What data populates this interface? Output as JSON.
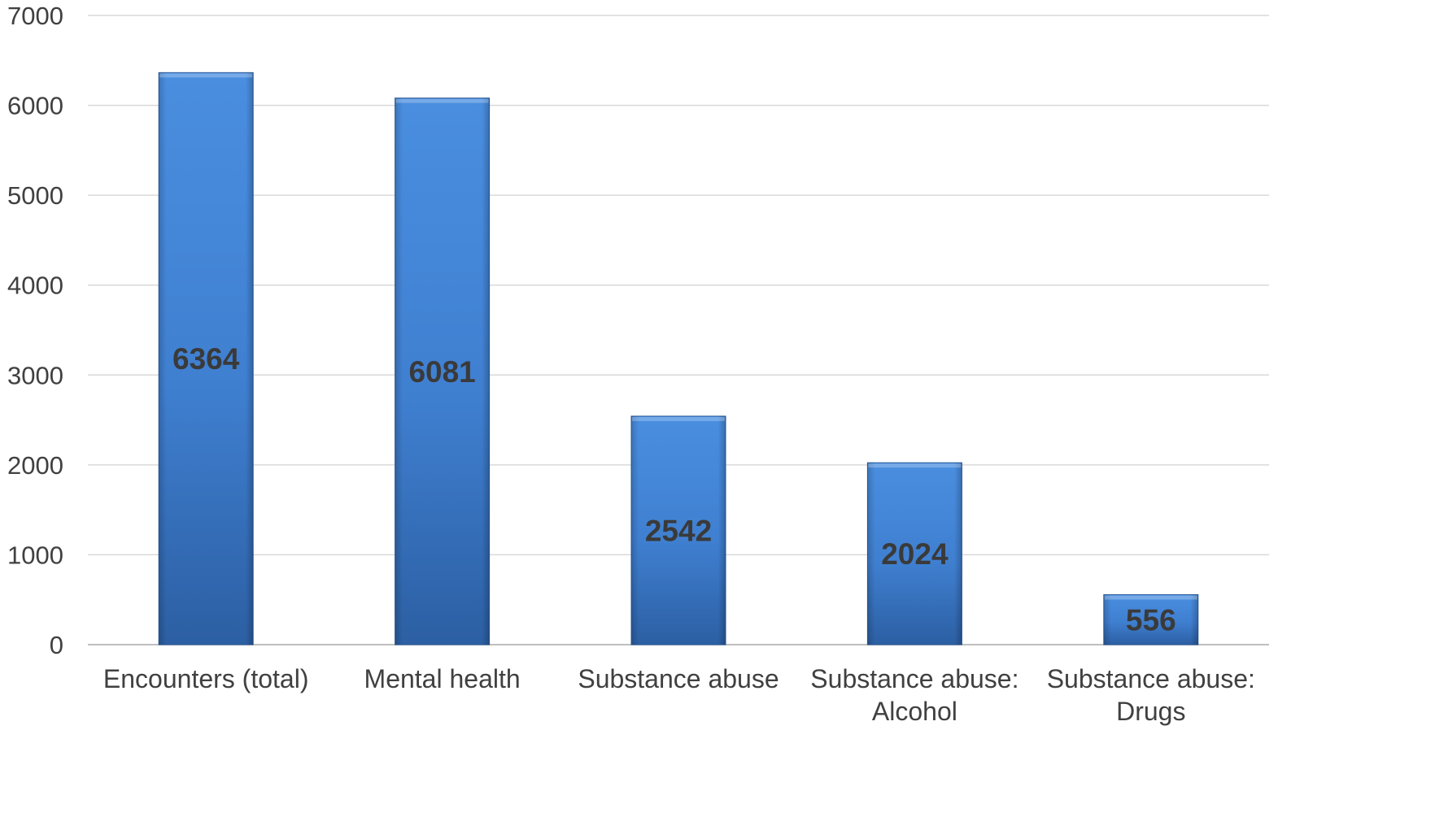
{
  "chart_data": {
    "type": "bar",
    "title": "",
    "xlabel": "",
    "ylabel": "",
    "categories": [
      [
        "Encounters (total)"
      ],
      [
        "Mental health"
      ],
      [
        "Substance abuse"
      ],
      [
        "Substance abuse:",
        "Alcohol"
      ],
      [
        "Substance abuse:",
        "Drugs"
      ]
    ],
    "values": [
      6364,
      6081,
      2542,
      2024,
      556
    ],
    "data_labels": [
      "6364",
      "6081",
      "2542",
      "2024",
      "556"
    ],
    "ylim": [
      0,
      7000
    ],
    "yticks": [
      0,
      1000,
      2000,
      3000,
      4000,
      5000,
      6000,
      7000
    ],
    "ytick_labels": [
      "0",
      "1000",
      "2000",
      "3000",
      "4000",
      "5000",
      "6000",
      "7000"
    ],
    "grid": true,
    "legend": "none",
    "colors": {
      "bar_top": "#4a8ee0",
      "bar_mid": "#3f7fd0",
      "bar_bottom": "#2c5fa3",
      "bar_edge": "#2a5a9a",
      "gridline": "#d9d9d9",
      "text": "#404040"
    }
  }
}
